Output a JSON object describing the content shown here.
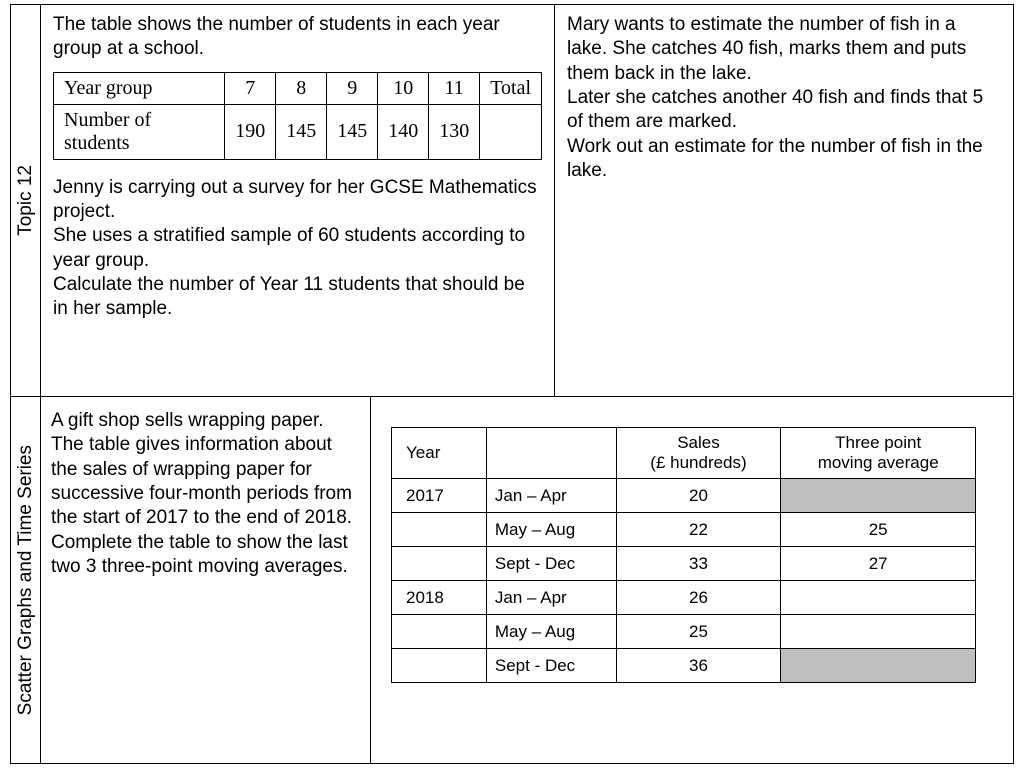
{
  "topic_label": "Topic 12",
  "section_label": "Scatter Graphs and Time Series",
  "q1": {
    "intro": "The table shows the number of students in each year group at a school.",
    "table": {
      "row1_label": "Year group",
      "row1_cols": [
        "7",
        "8",
        "9",
        "10",
        "11",
        "Total"
      ],
      "row2_label": "Number of students",
      "row2_cols": [
        "190",
        "145",
        "145",
        "140",
        "130",
        ""
      ]
    },
    "followup_l1": "Jenny is carrying out a survey for her GCSE Mathematics project.",
    "followup_l2": "She uses a stratified sample of 60 students according to year group.",
    "followup_l3": "Calculate the number of Year 11 students that should be in her sample."
  },
  "q2": {
    "p1": "Mary wants to estimate the number of fish in a lake. She catches 40 fish, marks them and puts them back in the lake.",
    "p2": "Later she catches another 40 fish and finds that 5 of them are marked.",
    "p3": "Work out an estimate for the number of fish in the lake."
  },
  "q3": {
    "text_l1": "A gift shop sells wrapping paper.",
    "text_l2": "The table gives information about the sales of wrapping paper for successive four-month periods from the start of 2017 to the end of 2018.",
    "text_l3": "Complete the table to show the last two 3 three-point moving averages.",
    "table": {
      "h_year": "Year",
      "h_period": "",
      "h_sales_l1": "Sales",
      "h_sales_l2": "(£ hundreds)",
      "h_avg_l1": "Three point",
      "h_avg_l2": "moving average",
      "rows": [
        {
          "year": "2017",
          "period": "Jan – Apr",
          "sales": "20",
          "avg": "",
          "avg_grey": true
        },
        {
          "year": "",
          "period": "May – Aug",
          "sales": "22",
          "avg": "25",
          "avg_grey": false
        },
        {
          "year": "",
          "period": "Sept - Dec",
          "sales": "33",
          "avg": "27",
          "avg_grey": false
        },
        {
          "year": "2018",
          "period": "Jan – Apr",
          "sales": "26",
          "avg": "",
          "avg_grey": false
        },
        {
          "year": "",
          "period": "May – Aug",
          "sales": "25",
          "avg": "",
          "avg_grey": false
        },
        {
          "year": "",
          "period": "Sept - Dec",
          "sales": "36",
          "avg": "",
          "avg_grey": true
        }
      ]
    }
  },
  "colors": {
    "border": "#000000",
    "background": "#ffffff",
    "grey_fill": "#bfbfbf",
    "text": "#000000"
  }
}
